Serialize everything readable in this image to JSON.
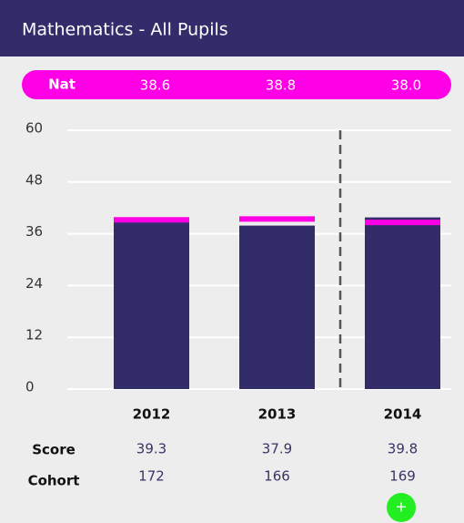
{
  "chart_data": {
    "type": "bar",
    "title": "Mathematics - All Pupils",
    "categories": [
      "2012",
      "2013",
      "2014"
    ],
    "series": [
      {
        "name": "Score",
        "color": "#332c6b",
        "values": [
          39.3,
          37.9,
          39.8
        ]
      },
      {
        "name": "Nat",
        "color": "#ff00e6",
        "values": [
          38.6,
          38.8,
          38.0
        ],
        "value_labels": [
          "38.6",
          "38.8",
          "38.0"
        ]
      }
    ],
    "cohort_label": "Cohort",
    "cohort": [
      172,
      166,
      169
    ],
    "ylim": [
      0,
      60
    ],
    "yticks": [
      0,
      12,
      24,
      36,
      48,
      60
    ],
    "grid": true,
    "add_button": "+"
  }
}
